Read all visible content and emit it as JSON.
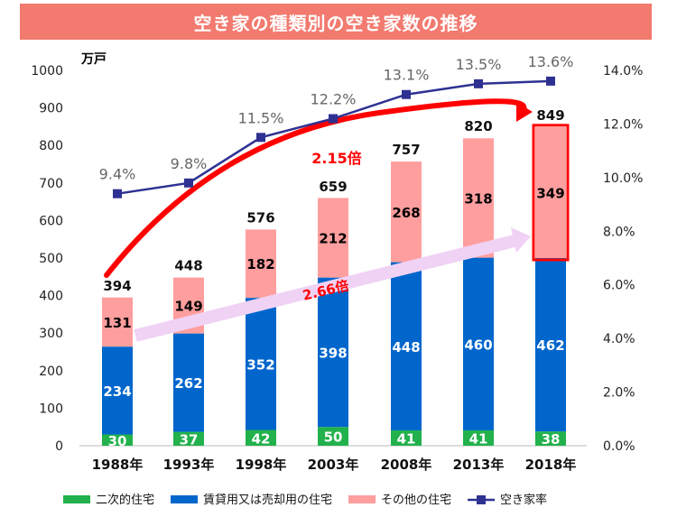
{
  "title": "空き家の種類別の空き家数の推移",
  "chart_data": {
    "type": "bar",
    "categories": [
      "1988年",
      "1993年",
      "1998年",
      "2003年",
      "2008年",
      "2013年",
      "2018年"
    ],
    "series": [
      {
        "name": "二次的住宅",
        "values": [
          30,
          37,
          42,
          50,
          41,
          41,
          38
        ],
        "color": "#22b14c"
      },
      {
        "name": "賃貸用又は売却用の住宅",
        "values": [
          234,
          262,
          352,
          398,
          448,
          460,
          462
        ],
        "color": "#0066cc"
      },
      {
        "name": "その他の住宅",
        "values": [
          131,
          149,
          182,
          212,
          268,
          318,
          349
        ],
        "color": "#ff9e9e"
      }
    ],
    "totals": [
      394,
      448,
      576,
      659,
      757,
      820,
      849
    ],
    "line_series": {
      "name": "空き家率",
      "values": [
        9.4,
        9.8,
        11.5,
        12.2,
        13.1,
        13.5,
        13.6
      ],
      "labels": [
        "9.4%",
        "9.8%",
        "11.5%",
        "12.2%",
        "13.1%",
        "13.5%",
        "13.6%"
      ],
      "color": "#2e3192"
    },
    "y_left": {
      "unit": "万戸",
      "min": 0,
      "max": 1000,
      "ticks": [
        0,
        100,
        200,
        300,
        400,
        500,
        600,
        700,
        800,
        900,
        1000
      ]
    },
    "y_right": {
      "min": 0,
      "max": 14,
      "ticks": [
        "0.0%",
        "2.0%",
        "4.0%",
        "6.0%",
        "8.0%",
        "10.0%",
        "12.0%",
        "14.0%"
      ]
    },
    "annotations": [
      {
        "text": "2.15倍"
      },
      {
        "text": "2.66倍"
      }
    ],
    "legend_position": "bottom"
  }
}
